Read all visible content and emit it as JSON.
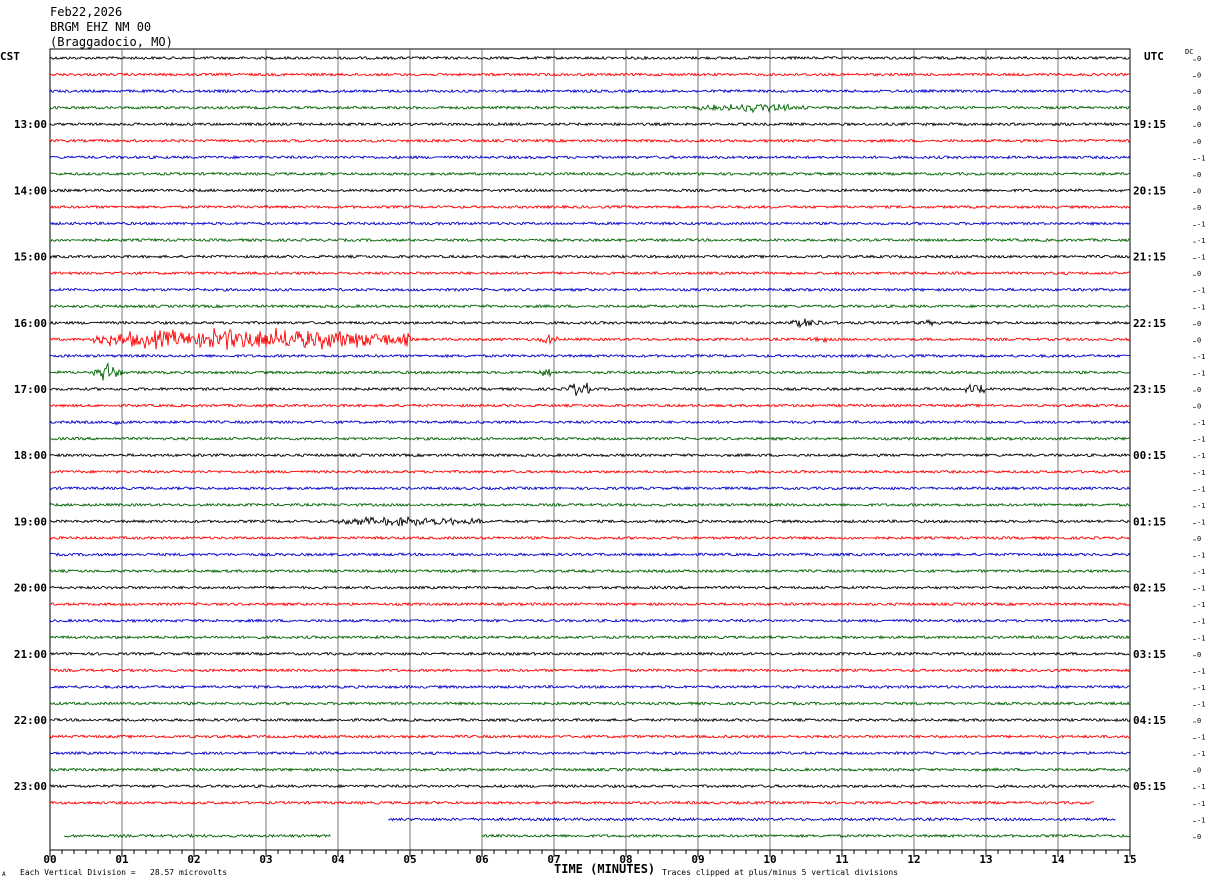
{
  "header": {
    "date": "Feb22,2026",
    "station": "BRGM EHZ NM 00",
    "location": "(Braggadocio, MO)"
  },
  "corner_labels": {
    "left": "CST",
    "right": "UTC",
    "dc": "DC"
  },
  "footer": {
    "scale_note": "Each Vertical Division =   28.57 microvolts",
    "clip_note": "Traces clipped at plus/minus 5 vertical divisions",
    "mark": "A"
  },
  "colors": [
    "#000000",
    "#ff0000",
    "#0000cc",
    "#006400"
  ],
  "chart_data": {
    "type": "line",
    "title": "BRGM EHZ NM 00",
    "xlabel": "TIME (MINUTES)",
    "x_ticks": [
      "00",
      "01",
      "02",
      "03",
      "04",
      "05",
      "06",
      "07",
      "08",
      "09",
      "10",
      "11",
      "12",
      "13",
      "14",
      "15"
    ],
    "xlim": [
      0,
      15
    ],
    "left_hour_labels": [
      "13:00",
      "14:00",
      "15:00",
      "16:00",
      "17:00",
      "18:00",
      "19:00",
      "20:00",
      "21:00",
      "22:00",
      "23:00"
    ],
    "right_hour_labels": [
      "19:15",
      "20:15",
      "21:15",
      "22:15",
      "23:15",
      "00:15",
      "01:15",
      "02:15",
      "03:15",
      "04:15",
      "05:15"
    ],
    "traces_per_hour": 4,
    "trace_count": 48,
    "dc_offsets": [
      "0",
      "0",
      "0",
      "0",
      "0",
      "0",
      "-1",
      "0",
      "0",
      "0",
      "-1",
      "-1",
      "-1",
      "0",
      "-1",
      "-1",
      "0",
      "0",
      "-1",
      "-1",
      "0",
      "0",
      "-1",
      "-1",
      "-1",
      "-1",
      "-1",
      "-1",
      "-1",
      "0",
      "-1",
      "-1",
      "-1",
      "-1",
      "-1",
      "-1",
      "0",
      "-1",
      "-1",
      "-1",
      "0",
      "-1",
      "-1",
      "0",
      "-1",
      "-1",
      "-1",
      "0"
    ],
    "events": [
      {
        "trace": 3,
        "start_min": 9.0,
        "end_min": 10.5,
        "amplitude": 0.5
      },
      {
        "trace": 16,
        "start_min": 10.2,
        "end_min": 10.8,
        "amplitude": 0.5
      },
      {
        "trace": 16,
        "start_min": 12.0,
        "end_min": 12.4,
        "amplitude": 0.3
      },
      {
        "trace": 17,
        "start_min": 0.6,
        "end_min": 5.0,
        "amplitude": 1.4
      },
      {
        "trace": 17,
        "start_min": 6.8,
        "end_min": 7.1,
        "amplitude": 0.6
      },
      {
        "trace": 17,
        "start_min": 10.5,
        "end_min": 10.8,
        "amplitude": 0.5
      },
      {
        "trace": 19,
        "start_min": 0.6,
        "end_min": 1.0,
        "amplitude": 1.0
      },
      {
        "trace": 19,
        "start_min": 6.8,
        "end_min": 7.0,
        "amplitude": 0.6
      },
      {
        "trace": 20,
        "start_min": 7.2,
        "end_min": 7.5,
        "amplitude": 1.0
      },
      {
        "trace": 20,
        "start_min": 12.7,
        "end_min": 13.0,
        "amplitude": 0.9
      },
      {
        "trace": 22,
        "start_min": 0.8,
        "end_min": 1.0,
        "amplitude": 0.4
      },
      {
        "trace": 28,
        "start_min": 4.0,
        "end_min": 6.0,
        "amplitude": 0.6
      }
    ],
    "partial_traces": [
      {
        "trace": 45,
        "start_min": 0.0,
        "end_min": 14.5
      },
      {
        "trace": 46,
        "start_min": 4.7,
        "end_min": 14.8
      },
      {
        "trace": 47,
        "start_min": 0.2,
        "end_min": 3.9
      },
      {
        "trace": 47,
        "start_min": 6.0,
        "end_min": 15.0
      }
    ]
  }
}
